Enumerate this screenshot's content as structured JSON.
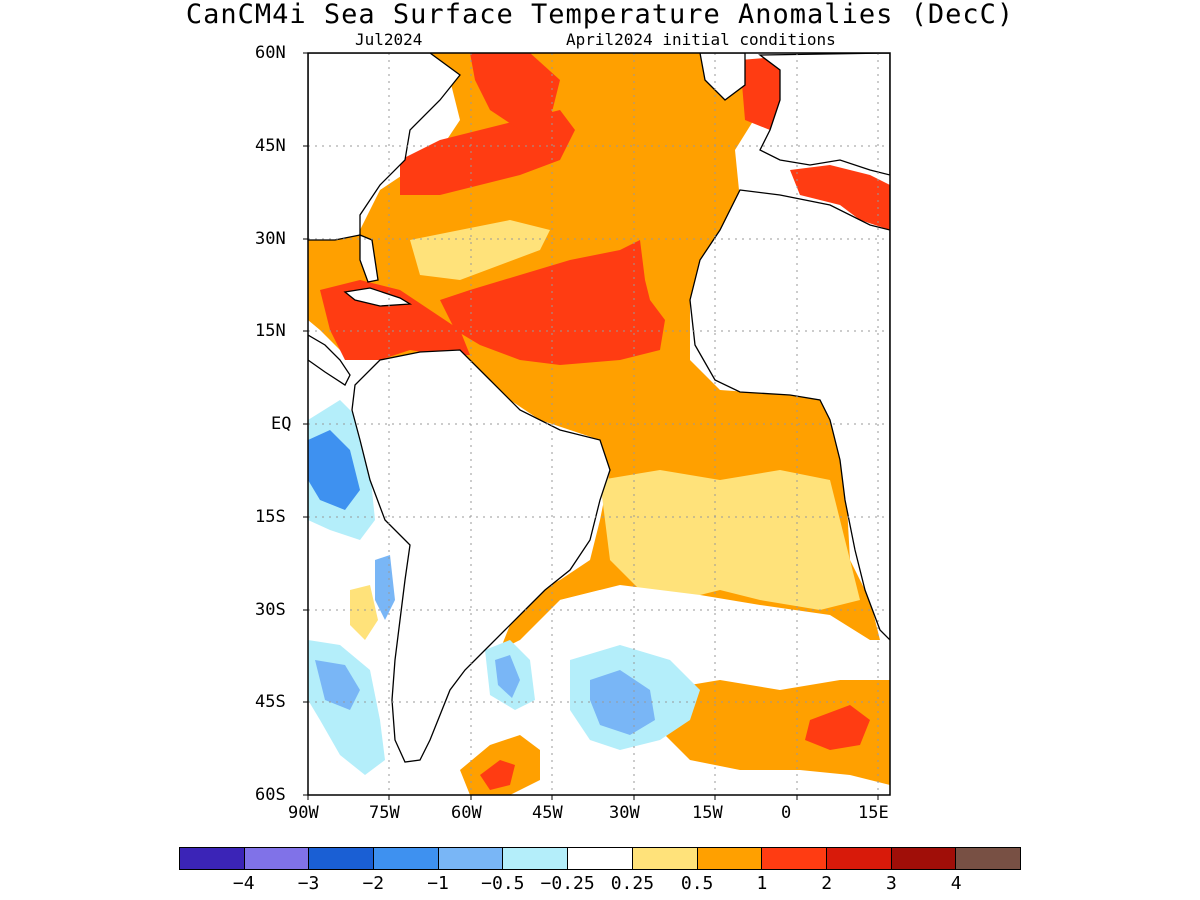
{
  "header": {
    "title": "CanCM4i Sea Surface Temperature Anomalies (DecC)",
    "valid_month": "Jul2024",
    "initial_conditions": "April2024 initial conditions"
  },
  "axes": {
    "lat_ticks": [
      "60N",
      "45N",
      "30N",
      "15N",
      "EQ",
      "15S",
      "30S",
      "45S",
      "60S"
    ],
    "lon_ticks": [
      "90W",
      "75W",
      "60W",
      "45W",
      "30W",
      "15W",
      "0",
      "15E"
    ],
    "lat_values": [
      60,
      45,
      30,
      15,
      0,
      -15,
      -30,
      -45,
      -60
    ],
    "lon_values": [
      -90,
      -75,
      -60,
      -45,
      -30,
      -15,
      0,
      15
    ],
    "lon_range": [
      -90,
      17
    ],
    "lat_range": [
      -60,
      60
    ],
    "grid": "dotted"
  },
  "legend": {
    "colors": [
      "#3b24b7",
      "#8072e8",
      "#1a5fd4",
      "#3e91f0",
      "#79b6f6",
      "#b4eefa",
      "#ffffff",
      "#ffe27a",
      "#ffa000",
      "#ff3c12",
      "#d81a0a",
      "#a00e08",
      "#785044"
    ],
    "labels": [
      "−4",
      "−3",
      "−2",
      "−1",
      "−0.5",
      "−0.25",
      "0.25",
      "0.5",
      "1",
      "2",
      "3",
      "4"
    ]
  },
  "colors": {
    "neutral": "#ffffff",
    "cool_1": "#b4eefa",
    "cool_2": "#79b6f6",
    "cool_3": "#3e91f0",
    "warm_1": "#ffe27a",
    "warm_2": "#ffa000",
    "warm_3": "#ff3c12",
    "warm_4": "#d81a0a",
    "warm_5": "#785044"
  }
}
